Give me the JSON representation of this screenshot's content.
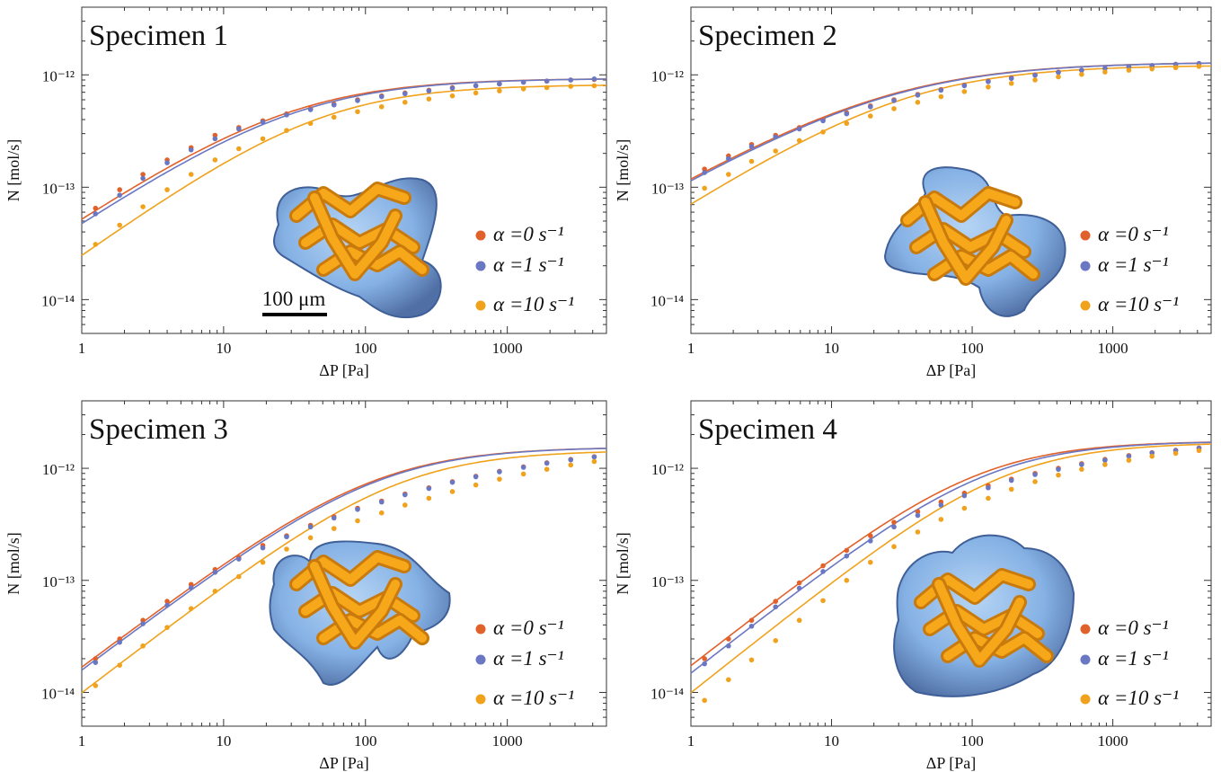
{
  "colors": {
    "alpha0": "#e1612b",
    "alpha1": "#6a77c2",
    "alpha10": "#f0a21c",
    "frame": "#333333"
  },
  "legend": [
    {
      "key": "alpha0",
      "label": "α =0 s⁻¹"
    },
    {
      "key": "alpha1",
      "label": "α =1 s⁻¹"
    },
    {
      "key": "alpha10",
      "label": "α =10 s⁻¹"
    }
  ],
  "scale_bar_label": "100 μm",
  "inset_icon": "pore-network-3d-render",
  "chart_data": [
    {
      "type": "scatter",
      "title": "Specimen 1",
      "xlabel": "ΔP [Pa]",
      "ylabel": "N [mol/s]",
      "xscale": "log",
      "yscale": "log",
      "xlim": [
        1,
        5000
      ],
      "ylim": [
        5e-15,
        4e-12
      ],
      "xticks": [
        1,
        10,
        100,
        1000
      ],
      "xtick_labels": [
        "1",
        "10",
        "100",
        "1000"
      ],
      "yticks": [
        1e-14,
        1e-13,
        1e-12
      ],
      "ytick_labels": [
        "10⁻¹⁴",
        "10⁻¹³",
        "10⁻¹²"
      ],
      "x": [
        1.25,
        1.85,
        2.7,
        4.0,
        5.9,
        8.7,
        12.8,
        18.9,
        27.8,
        41,
        60,
        88,
        130,
        190,
        280,
        410,
        600,
        880,
        1300,
        1900,
        2800,
        4100
      ],
      "series": [
        {
          "name": "α =0 s⁻¹",
          "key": "alpha0",
          "points": [
            6.5e-14,
            9.5e-14,
            1.3e-13,
            1.75e-13,
            2.25e-13,
            2.9e-13,
            3.4e-13,
            3.9e-13,
            4.5e-13,
            5e-13,
            5.5e-13,
            6e-13,
            6.5e-13,
            6.9e-13,
            7.3e-13,
            7.7e-13,
            8e-13,
            8.3e-13,
            8.6e-13,
            8.8e-13,
            9e-13,
            9.1e-13
          ],
          "fit": {
            "k": 5.5e-14,
            "n": 0.84,
            "sat": 9.3e-13
          }
        },
        {
          "name": "α =1 s⁻¹",
          "key": "alpha1",
          "points": [
            5.8e-14,
            8.5e-14,
            1.2e-13,
            1.65e-13,
            2.15e-13,
            2.7e-13,
            3.3e-13,
            3.8e-13,
            4.4e-13,
            4.9e-13,
            5.4e-13,
            5.9e-13,
            6.4e-13,
            6.8e-13,
            7.2e-13,
            7.6e-13,
            8e-13,
            8.3e-13,
            8.6e-13,
            8.8e-13,
            9e-13,
            9.2e-13
          ],
          "fit": {
            "k": 5e-14,
            "n": 0.84,
            "sat": 9.3e-13
          }
        },
        {
          "name": "α =10 s⁻¹",
          "key": "alpha10",
          "points": [
            3.1e-14,
            4.6e-14,
            6.7e-14,
            9.5e-14,
            1.3e-13,
            1.75e-13,
            2.2e-13,
            2.7e-13,
            3.2e-13,
            3.7e-13,
            4.2e-13,
            4.7e-13,
            5.2e-13,
            5.7e-13,
            6.1e-13,
            6.5e-13,
            6.9e-13,
            7.2e-13,
            7.5e-13,
            7.7e-13,
            7.9e-13,
            8e-13
          ],
          "fit": {
            "k": 2.55e-14,
            "n": 0.9,
            "sat": 8.2e-13
          }
        }
      ]
    },
    {
      "type": "scatter",
      "title": "Specimen 2",
      "xlabel": "ΔP [Pa]",
      "ylabel": "N [mol/s]",
      "xscale": "log",
      "yscale": "log",
      "xlim": [
        1,
        5000
      ],
      "ylim": [
        5e-15,
        4e-12
      ],
      "xticks": [
        1,
        10,
        100,
        1000
      ],
      "xtick_labels": [
        "1",
        "10",
        "100",
        "1000"
      ],
      "yticks": [
        1e-14,
        1e-13,
        1e-12
      ],
      "ytick_labels": [
        "10⁻¹⁴",
        "10⁻¹³",
        "10⁻¹²"
      ],
      "x": [
        1.25,
        1.85,
        2.7,
        4.0,
        5.9,
        8.7,
        12.8,
        18.9,
        27.8,
        41,
        60,
        88,
        130,
        190,
        280,
        410,
        600,
        880,
        1300,
        1900,
        2800,
        4100
      ],
      "series": [
        {
          "name": "α =0 s⁻¹",
          "key": "alpha0",
          "points": [
            1.45e-13,
            1.9e-13,
            2.4e-13,
            2.9e-13,
            3.4e-13,
            4e-13,
            4.6e-13,
            5.3e-13,
            6e-13,
            6.7e-13,
            7.4e-13,
            8.1e-13,
            8.8e-13,
            9.4e-13,
            1e-12,
            1.06e-12,
            1.1e-12,
            1.14e-12,
            1.18e-12,
            1.21e-12,
            1.24e-12,
            1.26e-12
          ],
          "fit": {
            "k": 1.3e-13,
            "n": 0.72,
            "sat": 1.3e-12
          }
        },
        {
          "name": "α =1 s⁻¹",
          "key": "alpha1",
          "points": [
            1.35e-13,
            1.8e-13,
            2.3e-13,
            2.8e-13,
            3.3e-13,
            3.9e-13,
            4.5e-13,
            5.2e-13,
            5.9e-13,
            6.6e-13,
            7.3e-13,
            8e-13,
            8.7e-13,
            9.3e-13,
            9.9e-13,
            1.05e-12,
            1.1e-12,
            1.14e-12,
            1.18e-12,
            1.21e-12,
            1.24e-12,
            1.26e-12
          ],
          "fit": {
            "k": 1.25e-13,
            "n": 0.72,
            "sat": 1.3e-12
          }
        },
        {
          "name": "α =10 s⁻¹",
          "key": "alpha10",
          "points": [
            9.8e-14,
            1.3e-13,
            1.7e-13,
            2.1e-13,
            2.6e-13,
            3.1e-13,
            3.7e-13,
            4.3e-13,
            5e-13,
            5.7e-13,
            6.4e-13,
            7.1e-13,
            7.8e-13,
            8.4e-13,
            9e-13,
            9.6e-13,
            1.01e-12,
            1.06e-12,
            1.1e-12,
            1.13e-12,
            1.16e-12,
            1.19e-12
          ],
          "fit": {
            "k": 7.5e-14,
            "n": 0.8,
            "sat": 1.22e-12
          }
        }
      ]
    },
    {
      "type": "scatter",
      "title": "Specimen 3",
      "xlabel": "ΔP [Pa]",
      "ylabel": "N [mol/s]",
      "xscale": "log",
      "yscale": "log",
      "xlim": [
        1,
        5000
      ],
      "ylim": [
        5e-15,
        4e-12
      ],
      "xticks": [
        1,
        10,
        100,
        1000
      ],
      "xtick_labels": [
        "1",
        "10",
        "100",
        "1000"
      ],
      "yticks": [
        1e-14,
        1e-13,
        1e-12
      ],
      "ytick_labels": [
        "10⁻¹⁴",
        "10⁻¹³",
        "10⁻¹²"
      ],
      "x": [
        1.25,
        1.85,
        2.7,
        4.0,
        5.9,
        8.7,
        12.8,
        18.9,
        27.8,
        41,
        60,
        88,
        130,
        190,
        280,
        410,
        600,
        880,
        1300,
        1900,
        2800,
        4100
      ],
      "series": [
        {
          "name": "α =0 s⁻¹",
          "key": "alpha0",
          "points": [
            2e-14,
            3e-14,
            4.4e-14,
            6.5e-14,
            9.2e-14,
            1.25e-13,
            1.6e-13,
            2.05e-13,
            2.5e-13,
            3.1e-13,
            3.7e-13,
            4.4e-13,
            5.1e-13,
            5.9e-13,
            6.7e-13,
            7.6e-13,
            8.5e-13,
            9.4e-13,
            1.03e-12,
            1.12e-12,
            1.2e-12,
            1.27e-12
          ],
          "fit": {
            "k": 1.7e-14,
            "n": 0.95,
            "sat": 1.55e-12
          }
        },
        {
          "name": "α =1 s⁻¹",
          "key": "alpha1",
          "points": [
            1.85e-14,
            2.8e-14,
            4.1e-14,
            6e-14,
            8.6e-14,
            1.18e-13,
            1.55e-13,
            1.95e-13,
            2.45e-13,
            3e-13,
            3.6e-13,
            4.3e-13,
            5e-13,
            5.8e-13,
            6.6e-13,
            7.5e-13,
            8.4e-13,
            9.3e-13,
            1.02e-12,
            1.11e-12,
            1.19e-12,
            1.26e-12
          ],
          "fit": {
            "k": 1.6e-14,
            "n": 0.95,
            "sat": 1.55e-12
          }
        },
        {
          "name": "α =10 s⁻¹",
          "key": "alpha10",
          "points": [
            1.15e-14,
            1.75e-14,
            2.6e-14,
            3.8e-14,
            5.6e-14,
            8e-14,
            1.08e-13,
            1.45e-13,
            1.9e-13,
            2.4e-13,
            2.9e-13,
            3.4e-13,
            4e-13,
            4.7e-13,
            5.4e-13,
            6.2e-13,
            7.1e-13,
            8e-13,
            8.9e-13,
            9.8e-13,
            1.07e-12,
            1.15e-12
          ],
          "fit": {
            "k": 1e-14,
            "n": 0.97,
            "sat": 1.45e-12
          }
        }
      ]
    },
    {
      "type": "scatter",
      "title": "Specimen 4",
      "xlabel": "ΔP [Pa]",
      "ylabel": "N [mol/s]",
      "xscale": "log",
      "yscale": "log",
      "xlim": [
        1,
        5000
      ],
      "ylim": [
        5e-15,
        4e-12
      ],
      "xticks": [
        1,
        10,
        100,
        1000
      ],
      "xtick_labels": [
        "1",
        "10",
        "100",
        "1000"
      ],
      "yticks": [
        1e-14,
        1e-13,
        1e-12
      ],
      "ytick_labels": [
        "10⁻¹⁴",
        "10⁻¹³",
        "10⁻¹²"
      ],
      "x": [
        1.25,
        1.85,
        2.7,
        4.0,
        5.9,
        8.7,
        12.8,
        18.9,
        27.8,
        41,
        60,
        88,
        130,
        190,
        280,
        410,
        600,
        880,
        1300,
        1900,
        2800,
        4100
      ],
      "series": [
        {
          "name": "α =0 s⁻¹",
          "key": "alpha0",
          "points": [
            2e-14,
            3e-14,
            4.4e-14,
            6.5e-14,
            9.5e-14,
            1.35e-13,
            1.85e-13,
            2.5e-13,
            3.3e-13,
            4.1e-13,
            5e-13,
            6e-13,
            7e-13,
            8e-13,
            9e-13,
            1e-12,
            1.1e-12,
            1.2e-12,
            1.3e-12,
            1.38e-12,
            1.45e-12,
            1.52e-12
          ],
          "fit": {
            "k": 1.75e-14,
            "n": 0.98,
            "sat": 1.75e-12
          }
        },
        {
          "name": "α =1 s⁻¹",
          "key": "alpha1",
          "points": [
            1.8e-14,
            2.6e-14,
            3.9e-14,
            5.8e-14,
            8.5e-14,
            1.2e-13,
            1.65e-13,
            2.25e-13,
            3e-13,
            3.8e-13,
            4.7e-13,
            5.7e-13,
            6.7e-13,
            7.8e-13,
            8.8e-13,
            9.8e-13,
            1.08e-12,
            1.18e-12,
            1.28e-12,
            1.37e-12,
            1.44e-12,
            1.51e-12
          ],
          "fit": {
            "k": 1.5e-14,
            "n": 0.98,
            "sat": 1.75e-12
          }
        },
        {
          "name": "α =10 s⁻¹",
          "key": "alpha10",
          "points": [
            8.5e-15,
            1.3e-14,
            1.95e-14,
            2.9e-14,
            4.4e-14,
            6.6e-14,
            1e-13,
            1.45e-13,
            2e-13,
            2.7e-13,
            3.5e-13,
            4.4e-13,
            5.4e-13,
            6.5e-13,
            7.6e-13,
            8.7e-13,
            9.8e-13,
            1.08e-12,
            1.18e-12,
            1.28e-12,
            1.36e-12,
            1.44e-12
          ],
          "fit": {
            "k": 1e-14,
            "n": 1.0,
            "sat": 1.7e-12
          }
        }
      ]
    }
  ]
}
